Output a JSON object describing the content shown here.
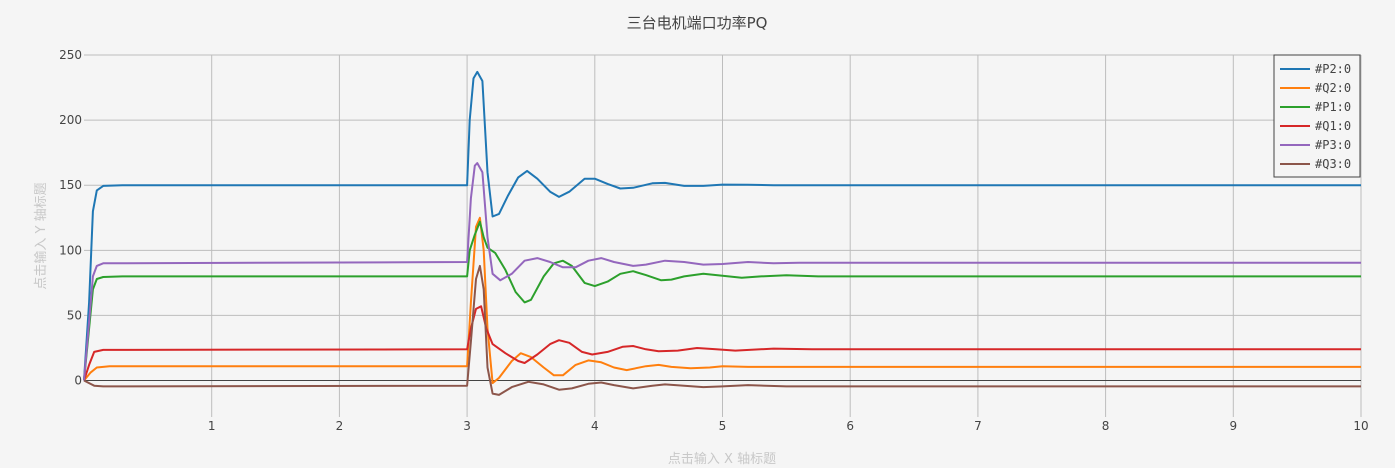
{
  "chart_data": {
    "type": "line",
    "title": "三台电机端口功率PQ",
    "xlabel": "点击输入 X 轴标题",
    "ylabel": "点击输入 Y 轴标题",
    "xlim": [
      0,
      10
    ],
    "ylim": [
      -28,
      250
    ],
    "xticks": [
      "1",
      "2",
      "3",
      "4",
      "5",
      "6",
      "7",
      "8",
      "9",
      "10"
    ],
    "yticks": [
      "0",
      "50",
      "100",
      "150",
      "200",
      "250"
    ],
    "grid": true,
    "legend_position": "top-right",
    "series": [
      {
        "name": "#P2:0",
        "color": "#1f77b4",
        "points": [
          [
            0,
            0
          ],
          [
            0.04,
            60
          ],
          [
            0.07,
            130
          ],
          [
            0.1,
            146
          ],
          [
            0.15,
            149.5
          ],
          [
            0.3,
            150
          ],
          [
            3.0,
            150
          ],
          [
            3.02,
            200
          ],
          [
            3.05,
            232
          ],
          [
            3.08,
            237
          ],
          [
            3.12,
            230
          ],
          [
            3.16,
            160
          ],
          [
            3.2,
            126
          ],
          [
            3.25,
            128
          ],
          [
            3.32,
            142
          ],
          [
            3.4,
            156
          ],
          [
            3.47,
            161
          ],
          [
            3.55,
            155
          ],
          [
            3.65,
            145
          ],
          [
            3.72,
            141
          ],
          [
            3.8,
            145
          ],
          [
            3.92,
            155
          ],
          [
            4.0,
            155
          ],
          [
            4.1,
            151
          ],
          [
            4.2,
            147.5
          ],
          [
            4.3,
            148
          ],
          [
            4.45,
            151.5
          ],
          [
            4.55,
            151.8
          ],
          [
            4.7,
            149.5
          ],
          [
            4.85,
            149.5
          ],
          [
            5.0,
            150.5
          ],
          [
            5.2,
            150.3
          ],
          [
            5.4,
            150
          ],
          [
            6,
            150
          ],
          [
            10,
            150
          ]
        ]
      },
      {
        "name": "#Q2:0",
        "color": "#ff7f0e",
        "points": [
          [
            0,
            0
          ],
          [
            0.05,
            6
          ],
          [
            0.1,
            10
          ],
          [
            0.2,
            11
          ],
          [
            3.0,
            11
          ],
          [
            3.03,
            60
          ],
          [
            3.07,
            118
          ],
          [
            3.1,
            125
          ],
          [
            3.13,
            100
          ],
          [
            3.16,
            40
          ],
          [
            3.2,
            -2
          ],
          [
            3.25,
            2
          ],
          [
            3.35,
            15
          ],
          [
            3.42,
            21
          ],
          [
            3.5,
            18
          ],
          [
            3.6,
            10
          ],
          [
            3.68,
            4
          ],
          [
            3.75,
            4
          ],
          [
            3.85,
            12
          ],
          [
            3.95,
            15.5
          ],
          [
            4.05,
            14
          ],
          [
            4.15,
            10
          ],
          [
            4.25,
            8
          ],
          [
            4.4,
            11
          ],
          [
            4.5,
            12
          ],
          [
            4.6,
            10.5
          ],
          [
            4.75,
            9.5
          ],
          [
            4.9,
            10
          ],
          [
            5.0,
            11
          ],
          [
            5.2,
            10.5
          ],
          [
            6,
            10.5
          ],
          [
            10,
            10.5
          ]
        ]
      },
      {
        "name": "#P1:0",
        "color": "#2ca02c",
        "points": [
          [
            0,
            0
          ],
          [
            0.04,
            40
          ],
          [
            0.07,
            70
          ],
          [
            0.1,
            78
          ],
          [
            0.15,
            79.5
          ],
          [
            0.3,
            80
          ],
          [
            3.0,
            80
          ],
          [
            3.02,
            100
          ],
          [
            3.06,
            112
          ],
          [
            3.1,
            122
          ],
          [
            3.13,
            110
          ],
          [
            3.16,
            102
          ],
          [
            3.22,
            98
          ],
          [
            3.3,
            85
          ],
          [
            3.38,
            68
          ],
          [
            3.45,
            60
          ],
          [
            3.5,
            62
          ],
          [
            3.6,
            80
          ],
          [
            3.68,
            90
          ],
          [
            3.75,
            92
          ],
          [
            3.82,
            88
          ],
          [
            3.92,
            75
          ],
          [
            4.0,
            72.5
          ],
          [
            4.1,
            76
          ],
          [
            4.2,
            82
          ],
          [
            4.3,
            84
          ],
          [
            4.4,
            81
          ],
          [
            4.52,
            77
          ],
          [
            4.6,
            77.5
          ],
          [
            4.7,
            80
          ],
          [
            4.85,
            82
          ],
          [
            5.0,
            80.5
          ],
          [
            5.15,
            79
          ],
          [
            5.3,
            80
          ],
          [
            5.5,
            80.8
          ],
          [
            5.75,
            80
          ],
          [
            6,
            80
          ],
          [
            10,
            80
          ]
        ]
      },
      {
        "name": "#Q1:0",
        "color": "#d62728",
        "points": [
          [
            0,
            0
          ],
          [
            0.04,
            12
          ],
          [
            0.08,
            22
          ],
          [
            0.15,
            23.5
          ],
          [
            0.3,
            23.5
          ],
          [
            3.0,
            24
          ],
          [
            3.03,
            40
          ],
          [
            3.07,
            55
          ],
          [
            3.11,
            57
          ],
          [
            3.15,
            40
          ],
          [
            3.2,
            28
          ],
          [
            3.3,
            21
          ],
          [
            3.4,
            15
          ],
          [
            3.45,
            13.5
          ],
          [
            3.55,
            20
          ],
          [
            3.65,
            28
          ],
          [
            3.72,
            31
          ],
          [
            3.8,
            29
          ],
          [
            3.9,
            22
          ],
          [
            3.98,
            20
          ],
          [
            4.1,
            22
          ],
          [
            4.22,
            26
          ],
          [
            4.3,
            26.5
          ],
          [
            4.4,
            24
          ],
          [
            4.5,
            22.5
          ],
          [
            4.65,
            23
          ],
          [
            4.8,
            25
          ],
          [
            4.95,
            24
          ],
          [
            5.1,
            23
          ],
          [
            5.4,
            24.5
          ],
          [
            5.7,
            24
          ],
          [
            6,
            24
          ],
          [
            10,
            24
          ]
        ]
      },
      {
        "name": "#P3:0",
        "color": "#9467bd",
        "points": [
          [
            0,
            0
          ],
          [
            0.04,
            45
          ],
          [
            0.07,
            80
          ],
          [
            0.1,
            88
          ],
          [
            0.15,
            90
          ],
          [
            0.3,
            90
          ],
          [
            3.0,
            91
          ],
          [
            3.03,
            140
          ],
          [
            3.06,
            165
          ],
          [
            3.08,
            167
          ],
          [
            3.12,
            160
          ],
          [
            3.16,
            110
          ],
          [
            3.2,
            82
          ],
          [
            3.26,
            77
          ],
          [
            3.35,
            82
          ],
          [
            3.45,
            92
          ],
          [
            3.55,
            94
          ],
          [
            3.65,
            91
          ],
          [
            3.75,
            87
          ],
          [
            3.85,
            87
          ],
          [
            3.95,
            92
          ],
          [
            4.05,
            94
          ],
          [
            4.15,
            91
          ],
          [
            4.3,
            88
          ],
          [
            4.4,
            89
          ],
          [
            4.55,
            92
          ],
          [
            4.7,
            91
          ],
          [
            4.85,
            89
          ],
          [
            5.0,
            89.5
          ],
          [
            5.2,
            91
          ],
          [
            5.4,
            90
          ],
          [
            5.6,
            90.5
          ],
          [
            6,
            90.5
          ],
          [
            10,
            90.5
          ]
        ]
      },
      {
        "name": "#Q3:0",
        "color": "#8c564b",
        "points": [
          [
            0,
            0
          ],
          [
            0.04,
            -2
          ],
          [
            0.08,
            -4
          ],
          [
            0.15,
            -4.5
          ],
          [
            0.3,
            -4.5
          ],
          [
            3.0,
            -4
          ],
          [
            3.03,
            30
          ],
          [
            3.07,
            78
          ],
          [
            3.1,
            88
          ],
          [
            3.13,
            70
          ],
          [
            3.16,
            10
          ],
          [
            3.2,
            -10
          ],
          [
            3.25,
            -11
          ],
          [
            3.35,
            -5
          ],
          [
            3.48,
            -1
          ],
          [
            3.6,
            -3
          ],
          [
            3.72,
            -7
          ],
          [
            3.82,
            -6
          ],
          [
            3.95,
            -2.5
          ],
          [
            4.05,
            -1.5
          ],
          [
            4.15,
            -3.5
          ],
          [
            4.3,
            -6
          ],
          [
            4.45,
            -4
          ],
          [
            4.55,
            -3
          ],
          [
            4.7,
            -4
          ],
          [
            4.85,
            -5
          ],
          [
            5.0,
            -4.5
          ],
          [
            5.2,
            -3.5
          ],
          [
            5.5,
            -4.5
          ],
          [
            6,
            -4.5
          ],
          [
            10,
            -4.5
          ]
        ]
      }
    ]
  }
}
